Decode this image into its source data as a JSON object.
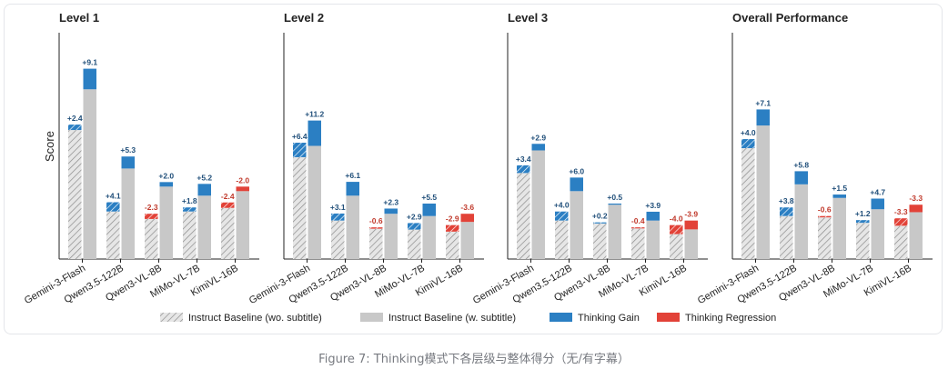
{
  "caption": "Figure 7: Thinking模式下各层级与整体得分（无/有字幕）",
  "colors": {
    "baseline_hatched": "#e6e6e6",
    "hatch_line": "#8c8c8c",
    "baseline_solid": "#c8c8c8",
    "gain": "#2b7fc3",
    "regression": "#e24238",
    "gain_label": "#1f4e79",
    "regression_label": "#c0392b"
  },
  "chart_data": {
    "type": "bar",
    "ylabel": "Score",
    "grid": false,
    "legend_position": "bottom",
    "legend": [
      {
        "key": "instruct_wo",
        "label": "Instruct Baseline (wo. subtitle)"
      },
      {
        "key": "instruct_w",
        "label": "Instruct Baseline (w. subtitle)"
      },
      {
        "key": "gain",
        "label": "Thinking Gain"
      },
      {
        "key": "regression",
        "label": "Thinking Regression"
      }
    ],
    "models": [
      "Gemini-3-Flash",
      "Qwen3.5-122B",
      "Qwen3-VL-8B",
      "MiMo-VL-7B",
      "KimiVL-16B"
    ],
    "ylim": [
      0,
      100
    ],
    "panels": [
      {
        "title": "Level 1",
        "wo_subtitle": {
          "baseline": [
            57,
            21,
            20,
            21,
            25
          ],
          "delta": [
            2.4,
            4.1,
            -2.3,
            1.8,
            -2.4
          ],
          "labels": [
            "+2.4",
            "+4.1",
            "-2.3",
            "+1.8",
            "-2.4"
          ]
        },
        "w_subtitle": {
          "baseline": [
            75,
            40,
            32,
            28,
            32
          ],
          "delta": [
            9.1,
            5.3,
            2.0,
            5.2,
            -2.0
          ],
          "labels": [
            "+9.1",
            "+5.3",
            "+2.0",
            "+5.2",
            "-2.0"
          ]
        }
      },
      {
        "title": "Level 2",
        "wo_subtitle": {
          "baseline": [
            45,
            17,
            14,
            13,
            15
          ],
          "delta": [
            6.4,
            3.1,
            -0.6,
            2.9,
            -2.9
          ],
          "labels": [
            "+6.4",
            "+3.1",
            "-0.6",
            "+2.9",
            "-2.9"
          ]
        },
        "w_subtitle": {
          "baseline": [
            50,
            28,
            20,
            19,
            20
          ],
          "delta": [
            11.2,
            6.1,
            2.3,
            5.5,
            -3.6
          ],
          "labels": [
            "+11.2",
            "+6.1",
            "+2.3",
            "+5.5",
            "-3.6"
          ]
        }
      },
      {
        "title": "Level 3",
        "wo_subtitle": {
          "baseline": [
            38,
            17,
            16,
            14,
            15
          ],
          "delta": [
            3.4,
            4.0,
            0.2,
            -0.4,
            -4.0
          ],
          "labels": [
            "+3.4",
            "+4.0",
            "+0.2",
            "-0.4",
            "-4.0"
          ]
        },
        "w_subtitle": {
          "baseline": [
            48,
            30,
            24,
            17,
            17
          ],
          "delta": [
            2.9,
            6.0,
            0.5,
            3.9,
            -3.9
          ],
          "labels": [
            "+2.9",
            "+6.0",
            "+0.5",
            "+3.9",
            "-3.9"
          ]
        }
      },
      {
        "title": "Overall Performance",
        "wo_subtitle": {
          "baseline": [
            49,
            19,
            19,
            16,
            18
          ],
          "delta": [
            4.0,
            3.8,
            -0.6,
            1.2,
            -3.3
          ],
          "labels": [
            "+4.0",
            "+3.8",
            "-0.6",
            "+1.2",
            "-3.3"
          ]
        },
        "w_subtitle": {
          "baseline": [
            59,
            33,
            27,
            22,
            24
          ],
          "delta": [
            7.1,
            5.8,
            1.5,
            4.7,
            -3.3
          ],
          "labels": [
            "+7.1",
            "+5.8",
            "+1.5",
            "+4.7",
            "-3.3"
          ]
        }
      }
    ]
  }
}
